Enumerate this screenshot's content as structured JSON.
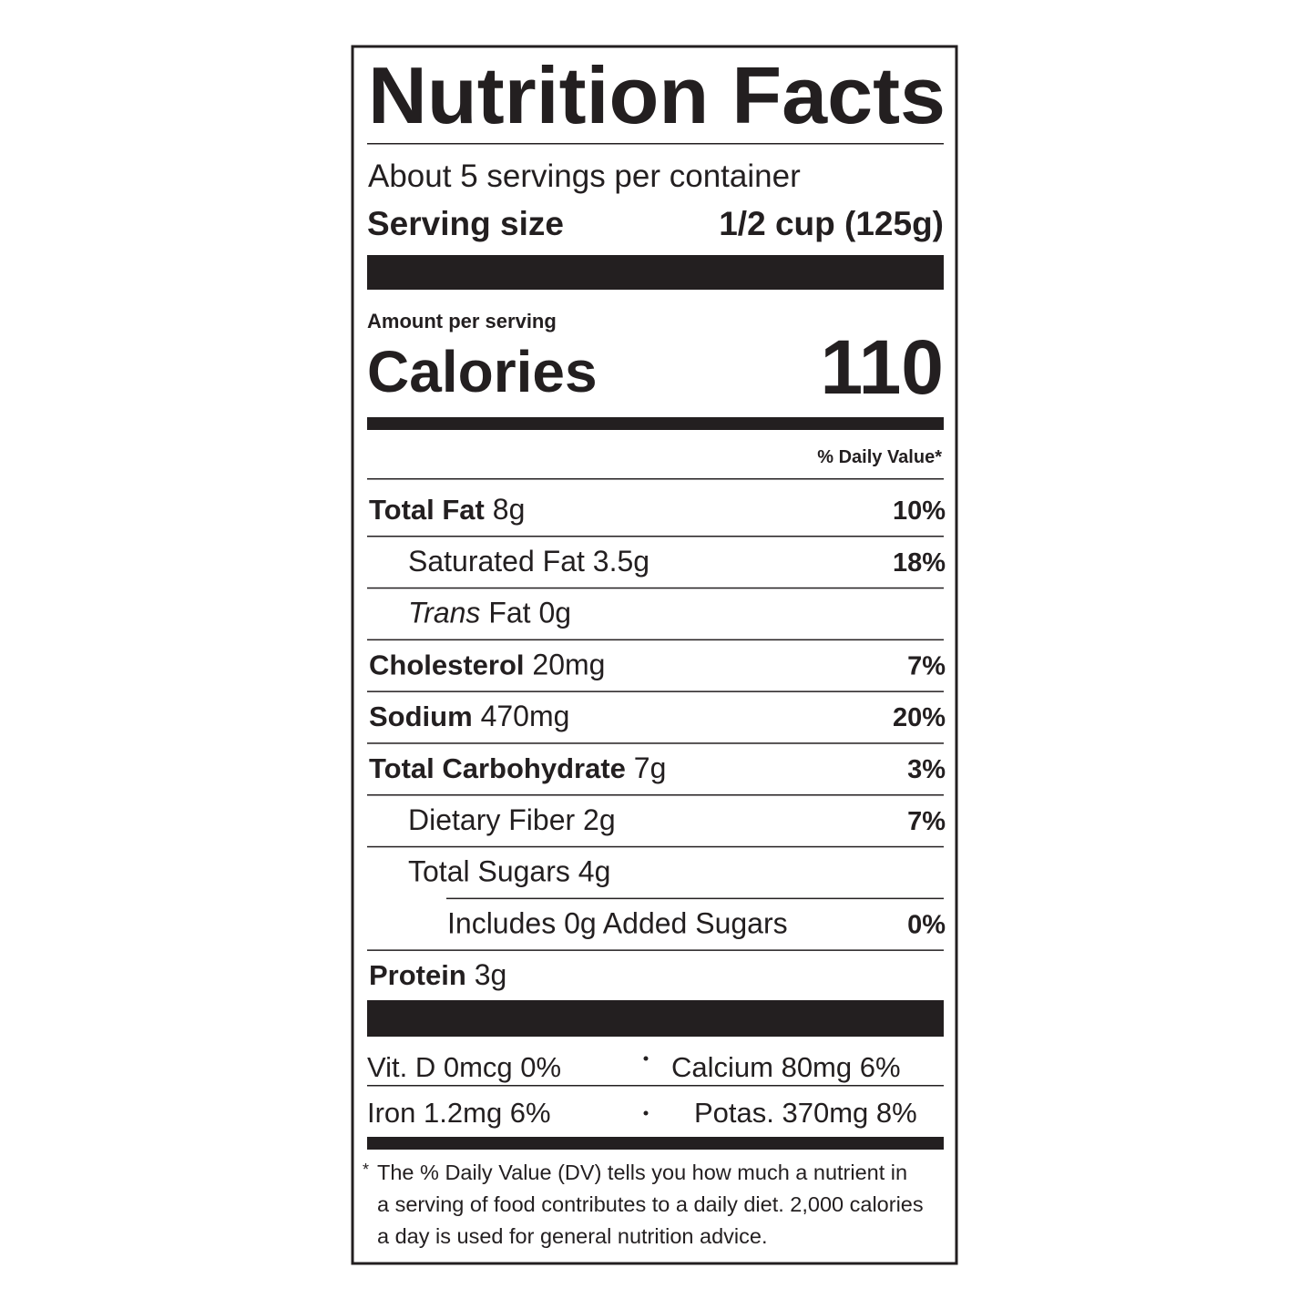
{
  "title": "Nutrition Facts",
  "servings": "About 5 servings per container",
  "serving_size": {
    "label": "Serving size",
    "value": "1/2 cup (125g)"
  },
  "amount_per_serving": "Amount per serving",
  "calories": {
    "label": "Calories",
    "value": "110"
  },
  "daily_value_header": "% Daily Value*",
  "nutrients": [
    {
      "name": "Total Fat",
      "amount": "8g",
      "dv": "10%"
    },
    {
      "name": "Saturated Fat",
      "amount": "3.5g",
      "dv": "18%"
    },
    {
      "name_italic": "Trans",
      "name": "Fat",
      "amount": "0g"
    },
    {
      "name": "Cholesterol",
      "amount": "20mg",
      "dv": "7%"
    },
    {
      "name": "Sodium",
      "amount": "470mg",
      "dv": "20%"
    },
    {
      "name": "Total Carbohydrate",
      "amount": "7g",
      "dv": "3%"
    },
    {
      "name": "Dietary Fiber",
      "amount": "2g",
      "dv": "7%"
    },
    {
      "name": "Total Sugars",
      "amount": "4g"
    },
    {
      "name": "Includes 0g Added Sugars",
      "dv": "0%"
    },
    {
      "name": "Protein",
      "amount": "3g"
    }
  ],
  "vitamins": [
    [
      "Vit. D 0mcg 0%",
      "Calcium 80mg 6%"
    ],
    [
      "Iron 1.2mg 6%",
      "Potas. 370mg 8%"
    ]
  ],
  "footnote": [
    "The % Daily Value (DV) tells you how much a nutrient in",
    "a serving of food contributes to a daily diet. 2,000 calories",
    "a day is used for general nutrition advice."
  ]
}
